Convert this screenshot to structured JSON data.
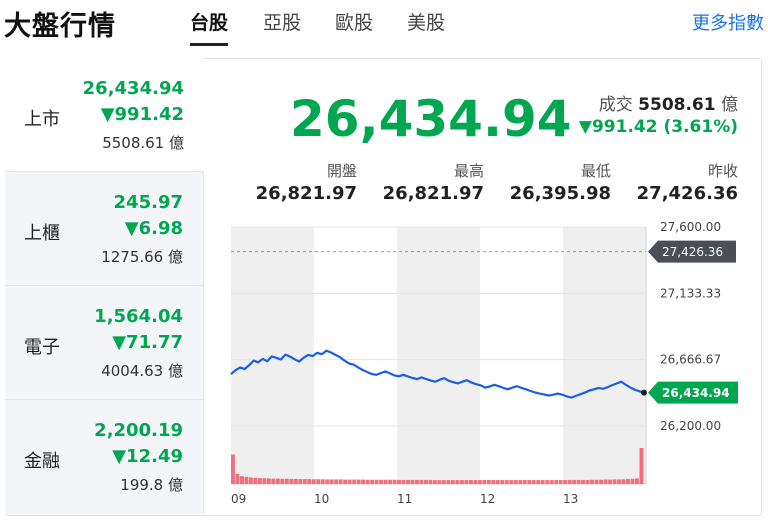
{
  "header": {
    "title": "大盤行情",
    "tabs": [
      {
        "label": "台股",
        "active": true
      },
      {
        "label": "亞股",
        "active": false
      },
      {
        "label": "歐股",
        "active": false
      },
      {
        "label": "美股",
        "active": false
      }
    ],
    "more_link": "更多指數"
  },
  "sidebar": {
    "items": [
      {
        "name": "上市",
        "value": "26,434.94",
        "change": "▼991.42",
        "volume": "5508.61 億"
      },
      {
        "name": "上櫃",
        "value": "245.97",
        "change": "▼6.98",
        "volume": "1275.66 億"
      },
      {
        "name": "電子",
        "value": "1,564.04",
        "change": "▼71.77",
        "volume": "4004.63 億"
      },
      {
        "name": "金融",
        "value": "2,200.19",
        "change": "▼12.49",
        "volume": "199.8 億"
      }
    ]
  },
  "main": {
    "index_value": "26,434.94",
    "turnover_label": "成交",
    "turnover_value": "5508.61",
    "turnover_unit": "億",
    "change_text": "▼991.42 (3.61%)",
    "stats": [
      {
        "label": "開盤",
        "value": "26,821.97"
      },
      {
        "label": "最高",
        "value": "26,821.97"
      },
      {
        "label": "最低",
        "value": "26,395.98"
      },
      {
        "label": "昨收",
        "value": "27,426.36"
      }
    ]
  },
  "colors": {
    "down": "#00a650",
    "line": "#1a5ee8",
    "volume_bar": "#f26d7d",
    "band": "#efefef",
    "prev_close_tag": "#4a4f57"
  },
  "chart_data": {
    "type": "line",
    "title": "",
    "xlabel": "",
    "ylabel": "",
    "x_ticks": [
      "09",
      "10",
      "11",
      "12",
      "13"
    ],
    "y_ticks": [
      27600.0,
      27133.33,
      26666.67,
      26200.0
    ],
    "y_tick_labels": [
      "27,600.00",
      "27,133.33",
      "26,666.67",
      "26,200.00"
    ],
    "ylim": [
      26200.0,
      27600.0
    ],
    "reference_lines": [
      {
        "name": "昨收",
        "value": 27426.36,
        "label": "27,426.36"
      }
    ],
    "last_value_label": "26,434.94",
    "series": [
      {
        "values": [
          26565,
          26592,
          26612,
          26600,
          26628,
          26660,
          26648,
          26672,
          26655,
          26690,
          26680,
          26668,
          26702,
          26688,
          26670,
          26654,
          26680,
          26700,
          26692,
          26715,
          26705,
          26730,
          26718,
          26700,
          26685,
          26660,
          26640,
          26632,
          26612,
          26594,
          26580,
          26566,
          26560,
          26572,
          26584,
          26570,
          26556,
          26550,
          26560,
          26548,
          26538,
          26530,
          26542,
          26530,
          26520,
          26512,
          26526,
          26536,
          26518,
          26508,
          26500,
          26512,
          26522,
          26505,
          26494,
          26486,
          26470,
          26478,
          26490,
          26480,
          26468,
          26458,
          26470,
          26480,
          26468,
          26458,
          26446,
          26436,
          26428,
          26422,
          26414,
          26420,
          26428,
          26420,
          26408,
          26400,
          26412,
          26424,
          26436,
          26450,
          26458,
          26468,
          26462,
          26474,
          26488,
          26500,
          26512,
          26490,
          26470,
          26455,
          26444,
          26434.94
        ]
      }
    ],
    "volume_series": {
      "values": [
        180,
        62,
        48,
        44,
        40,
        38,
        36,
        35,
        34,
        33,
        33,
        32,
        32,
        31,
        31,
        30,
        30,
        30,
        29,
        29,
        29,
        28,
        28,
        28,
        28,
        27,
        27,
        27,
        27,
        27,
        26,
        26,
        26,
        26,
        26,
        26,
        26,
        25,
        25,
        25,
        25,
        25,
        25,
        25,
        25,
        24,
        24,
        24,
        24,
        24,
        24,
        24,
        24,
        24,
        24,
        24,
        24,
        24,
        24,
        24,
        24,
        24,
        24,
        24,
        24,
        24,
        24,
        24,
        24,
        24,
        24,
        24,
        24,
        24,
        24,
        25,
        25,
        25,
        25,
        25,
        26,
        26,
        26,
        27,
        27,
        28,
        28,
        29,
        30,
        32,
        34,
        220
      ]
    }
  }
}
